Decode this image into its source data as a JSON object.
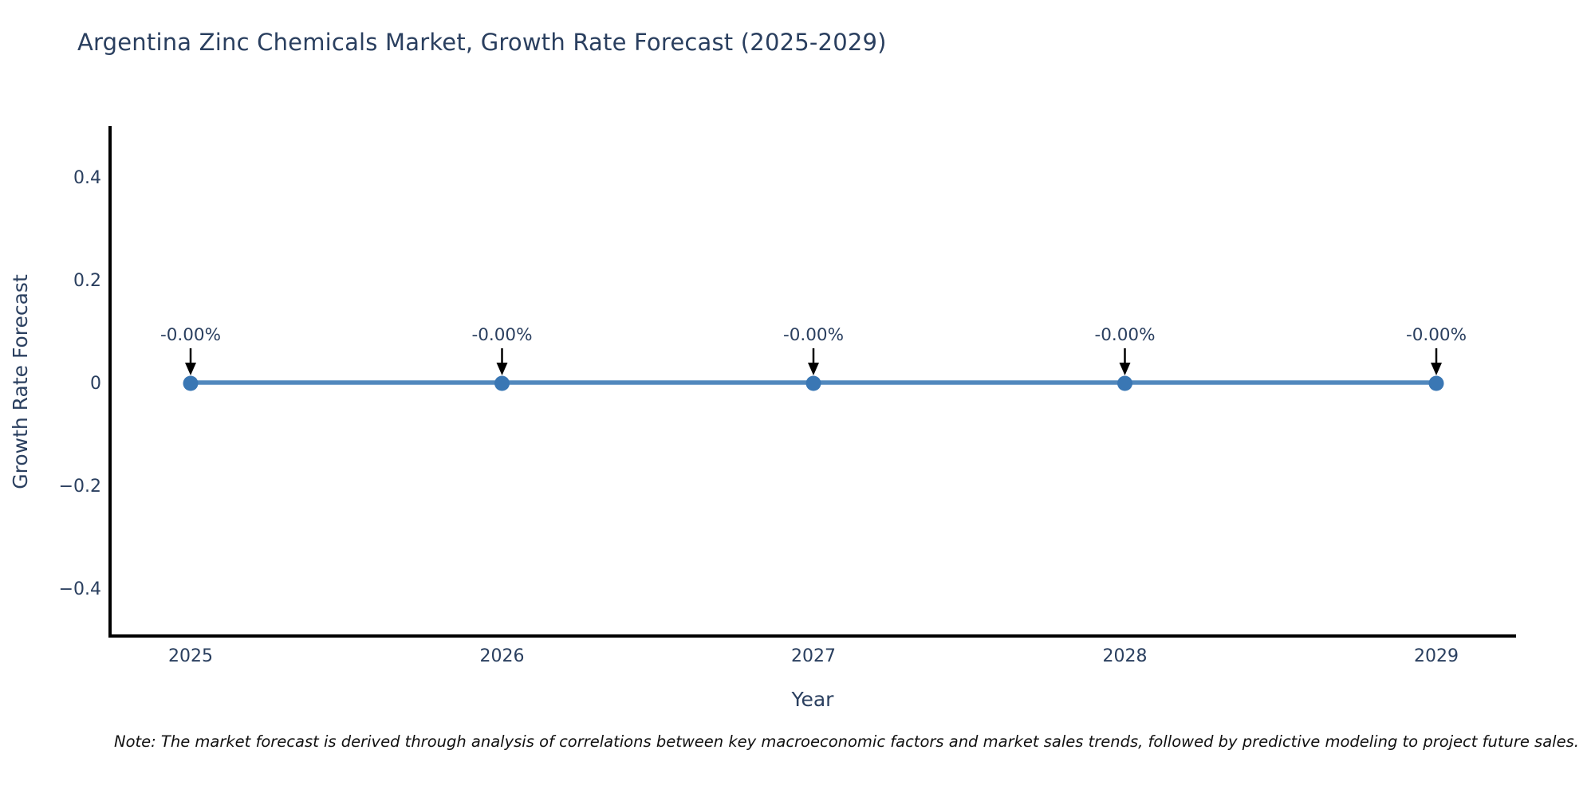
{
  "title": "Argentina Zinc Chemicals Market, Growth Rate Forecast (2025-2029)",
  "note": "Note: The market forecast is derived through analysis of correlations between key macroeconomic factors and market sales trends, followed by predictive modeling to project future sales.",
  "chart_data": {
    "type": "line",
    "title": "Argentina Zinc Chemicals Market, Growth Rate Forecast (2025-2029)",
    "xlabel": "Year",
    "ylabel": "Growth Rate Forecast",
    "x": [
      2025,
      2026,
      2027,
      2028,
      2029
    ],
    "values": [
      0,
      0,
      0,
      0,
      0
    ],
    "point_labels": [
      "-0.00%",
      "-0.00%",
      "-0.00%",
      "-0.00%",
      "-0.00%"
    ],
    "xtick_labels": [
      "2025",
      "2026",
      "2027",
      "2028",
      "2029"
    ],
    "yticks": [
      0.4,
      0.2,
      0,
      -0.2,
      -0.4
    ],
    "ytick_labels": [
      "0.4",
      "0.2",
      "0",
      "−0.2",
      "−0.4"
    ],
    "ylim": [
      -0.5,
      0.5
    ],
    "grid": false,
    "legend": "none",
    "annotation_style": "down-arrow-to-point",
    "colors": {
      "line": "#5188bd",
      "marker": "#3a77b4",
      "axis": "#000000",
      "tick_text": "#2a3f5f",
      "annotation_text": "#2a3f5f",
      "arrow": "#000000",
      "background": "#ffffff"
    }
  }
}
